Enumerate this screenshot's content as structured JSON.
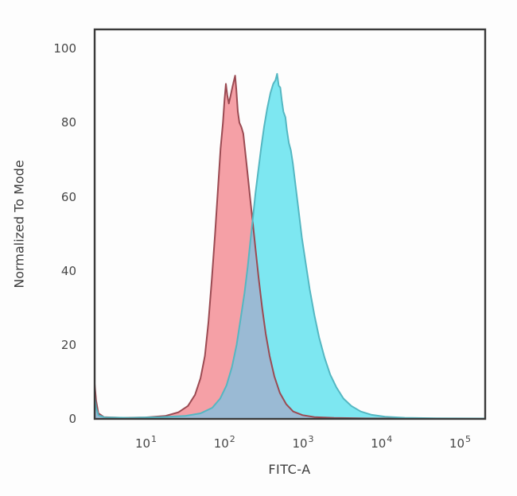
{
  "figure": {
    "background": "#fdfdfd",
    "frame_color": "#3a3a3a",
    "text_color": "#474747"
  },
  "chart_data": {
    "type": "area",
    "subtype": "flow-cytometry-histogram",
    "title": "",
    "xlabel": "FITC-A",
    "ylabel": "Normalized To Mode",
    "x_scale": "log",
    "xlim_log": [
      0.352,
      5.324
    ],
    "ylim": [
      0,
      105.2
    ],
    "grid": false,
    "legend": "none",
    "y_ticks": [
      0,
      20,
      40,
      60,
      80,
      100
    ],
    "x_ticks": [
      {
        "base": "10",
        "exp": "1"
      },
      {
        "base": "10",
        "exp": "2"
      },
      {
        "base": "10",
        "exp": "3"
      },
      {
        "base": "10",
        "exp": "4"
      },
      {
        "base": "10",
        "exp": "5"
      }
    ],
    "x_tick_exponents": [
      1,
      2,
      3,
      4,
      5
    ],
    "overlap_fill": "#9abad4",
    "series": [
      {
        "name": "red-control-histogram",
        "fill": "#f5a0a6",
        "stroke": "#9b4a52",
        "peak_log_x": 2.14,
        "peak_value": 92.7,
        "points": [
          [
            0.352,
            9.5
          ],
          [
            0.37,
            5
          ],
          [
            0.4,
            1.5
          ],
          [
            0.47,
            0.5
          ],
          [
            0.7,
            0.3
          ],
          [
            1.0,
            0.4
          ],
          [
            1.25,
            0.8
          ],
          [
            1.42,
            1.8
          ],
          [
            1.54,
            3.5
          ],
          [
            1.63,
            6.5
          ],
          [
            1.7,
            11
          ],
          [
            1.755,
            17
          ],
          [
            1.8,
            26
          ],
          [
            1.845,
            38
          ],
          [
            1.885,
            50
          ],
          [
            1.925,
            63
          ],
          [
            1.955,
            73
          ],
          [
            1.985,
            80
          ],
          [
            2.005,
            86
          ],
          [
            2.023,
            90.5
          ],
          [
            2.04,
            87.5
          ],
          [
            2.06,
            85.2
          ],
          [
            2.08,
            87
          ],
          [
            2.11,
            90
          ],
          [
            2.14,
            92.7
          ],
          [
            2.155,
            89
          ],
          [
            2.175,
            83
          ],
          [
            2.195,
            80
          ],
          [
            2.22,
            78.8
          ],
          [
            2.245,
            77
          ],
          [
            2.27,
            72
          ],
          [
            2.3,
            66
          ],
          [
            2.33,
            60
          ],
          [
            2.365,
            53
          ],
          [
            2.4,
            46
          ],
          [
            2.44,
            38
          ],
          [
            2.485,
            30
          ],
          [
            2.53,
            23
          ],
          [
            2.58,
            17
          ],
          [
            2.64,
            11.5
          ],
          [
            2.71,
            7
          ],
          [
            2.79,
            4
          ],
          [
            2.88,
            2
          ],
          [
            3.0,
            1
          ],
          [
            3.15,
            0.5
          ],
          [
            3.4,
            0.25
          ],
          [
            3.8,
            0.12
          ],
          [
            4.5,
            0.08
          ],
          [
            5.324,
            0.08
          ]
        ]
      },
      {
        "name": "cyan-stained-histogram",
        "fill": "#7de7f1",
        "stroke": "#54b7c2",
        "peak_log_x": 2.675,
        "peak_value": 93.2,
        "points": [
          [
            0.352,
            6
          ],
          [
            0.37,
            3
          ],
          [
            0.4,
            1
          ],
          [
            0.48,
            0.4
          ],
          [
            0.8,
            0.3
          ],
          [
            1.2,
            0.5
          ],
          [
            1.5,
            0.8
          ],
          [
            1.7,
            1.5
          ],
          [
            1.85,
            3
          ],
          [
            1.95,
            5.5
          ],
          [
            2.03,
            9
          ],
          [
            2.1,
            14
          ],
          [
            2.16,
            20
          ],
          [
            2.21,
            27
          ],
          [
            2.26,
            34
          ],
          [
            2.3,
            41
          ],
          [
            2.335,
            48
          ],
          [
            2.37,
            55
          ],
          [
            2.4,
            61
          ],
          [
            2.435,
            67
          ],
          [
            2.47,
            73
          ],
          [
            2.51,
            79
          ],
          [
            2.55,
            84
          ],
          [
            2.59,
            88
          ],
          [
            2.625,
            90.5
          ],
          [
            2.655,
            91.5
          ],
          [
            2.675,
            93.2
          ],
          [
            2.695,
            90
          ],
          [
            2.715,
            89.5
          ],
          [
            2.735,
            86
          ],
          [
            2.755,
            83
          ],
          [
            2.78,
            81.5
          ],
          [
            2.8,
            78
          ],
          [
            2.825,
            74.5
          ],
          [
            2.85,
            72.5
          ],
          [
            2.875,
            69
          ],
          [
            2.91,
            63
          ],
          [
            2.95,
            56
          ],
          [
            2.99,
            49
          ],
          [
            3.04,
            42
          ],
          [
            3.09,
            35
          ],
          [
            3.15,
            28
          ],
          [
            3.21,
            22
          ],
          [
            3.28,
            16.5
          ],
          [
            3.35,
            12
          ],
          [
            3.43,
            8.5
          ],
          [
            3.52,
            5.5
          ],
          [
            3.62,
            3.5
          ],
          [
            3.74,
            2
          ],
          [
            3.88,
            1.1
          ],
          [
            4.05,
            0.6
          ],
          [
            4.3,
            0.3
          ],
          [
            4.7,
            0.15
          ],
          [
            5.324,
            0.1
          ]
        ]
      }
    ]
  }
}
